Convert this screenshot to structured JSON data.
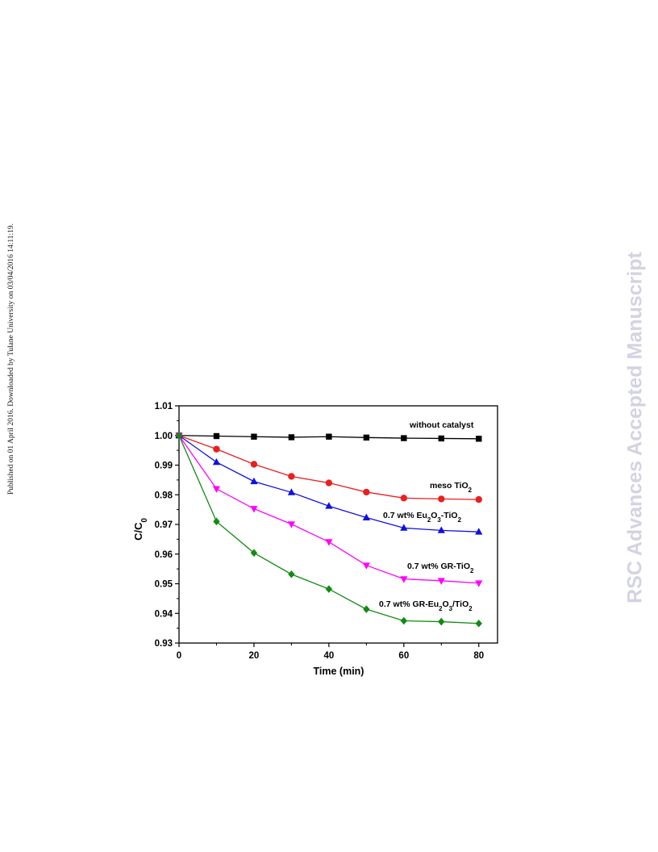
{
  "page": {
    "side_note": "Published on 01 April 2016. Downloaded by Tulane University on 03/04/2016 14:11:19.",
    "watermark": "RSC Advances Accepted Manuscript"
  },
  "chart_data": {
    "type": "line",
    "title": "",
    "xlabel": "Time (min)",
    "ylabel": "C/C0",
    "xlim": [
      0,
      85
    ],
    "ylim": [
      0.93,
      1.01
    ],
    "xticks": [
      "0",
      "20",
      "40",
      "60",
      "80"
    ],
    "yticks": [
      "0.93",
      "0.94",
      "0.95",
      "0.96",
      "0.97",
      "0.98",
      "0.99",
      "1.00",
      "1.01"
    ],
    "grid": false,
    "legend": "inline labels at right end of each series",
    "x": [
      0,
      10,
      20,
      30,
      40,
      50,
      60,
      70,
      80
    ],
    "series": [
      {
        "name": "without catalyst",
        "color": "#000000",
        "marker": "square",
        "values": [
          1.0,
          0.9998,
          0.9996,
          0.9994,
          0.9996,
          0.9993,
          0.9991,
          0.999,
          0.9989
        ]
      },
      {
        "name": "meso TiO2",
        "color": "#e82020",
        "marker": "circle",
        "values": [
          1.0,
          0.9954,
          0.9903,
          0.9862,
          0.984,
          0.9809,
          0.9789,
          0.9786,
          0.9784
        ]
      },
      {
        "name": "0.7 wt% Eu2O3-TiO2",
        "color": "#1010e0",
        "marker": "triangle-up",
        "values": [
          1.0,
          0.991,
          0.9845,
          0.9808,
          0.9762,
          0.9723,
          0.9688,
          0.968,
          0.9675
        ]
      },
      {
        "name": "0.7 wt% GR-TiO2",
        "color": "#ff00ff",
        "marker": "triangle-down",
        "values": [
          1.0,
          0.982,
          0.9753,
          0.9701,
          0.9641,
          0.9562,
          0.9516,
          0.951,
          0.9502
        ]
      },
      {
        "name": "0.7 wt% GR-Eu2O3/TiO2",
        "color": "#148a14",
        "marker": "diamond",
        "values": [
          1.0,
          0.971,
          0.9604,
          0.9532,
          0.9482,
          0.9414,
          0.9375,
          0.9372,
          0.9366
        ]
      }
    ]
  }
}
